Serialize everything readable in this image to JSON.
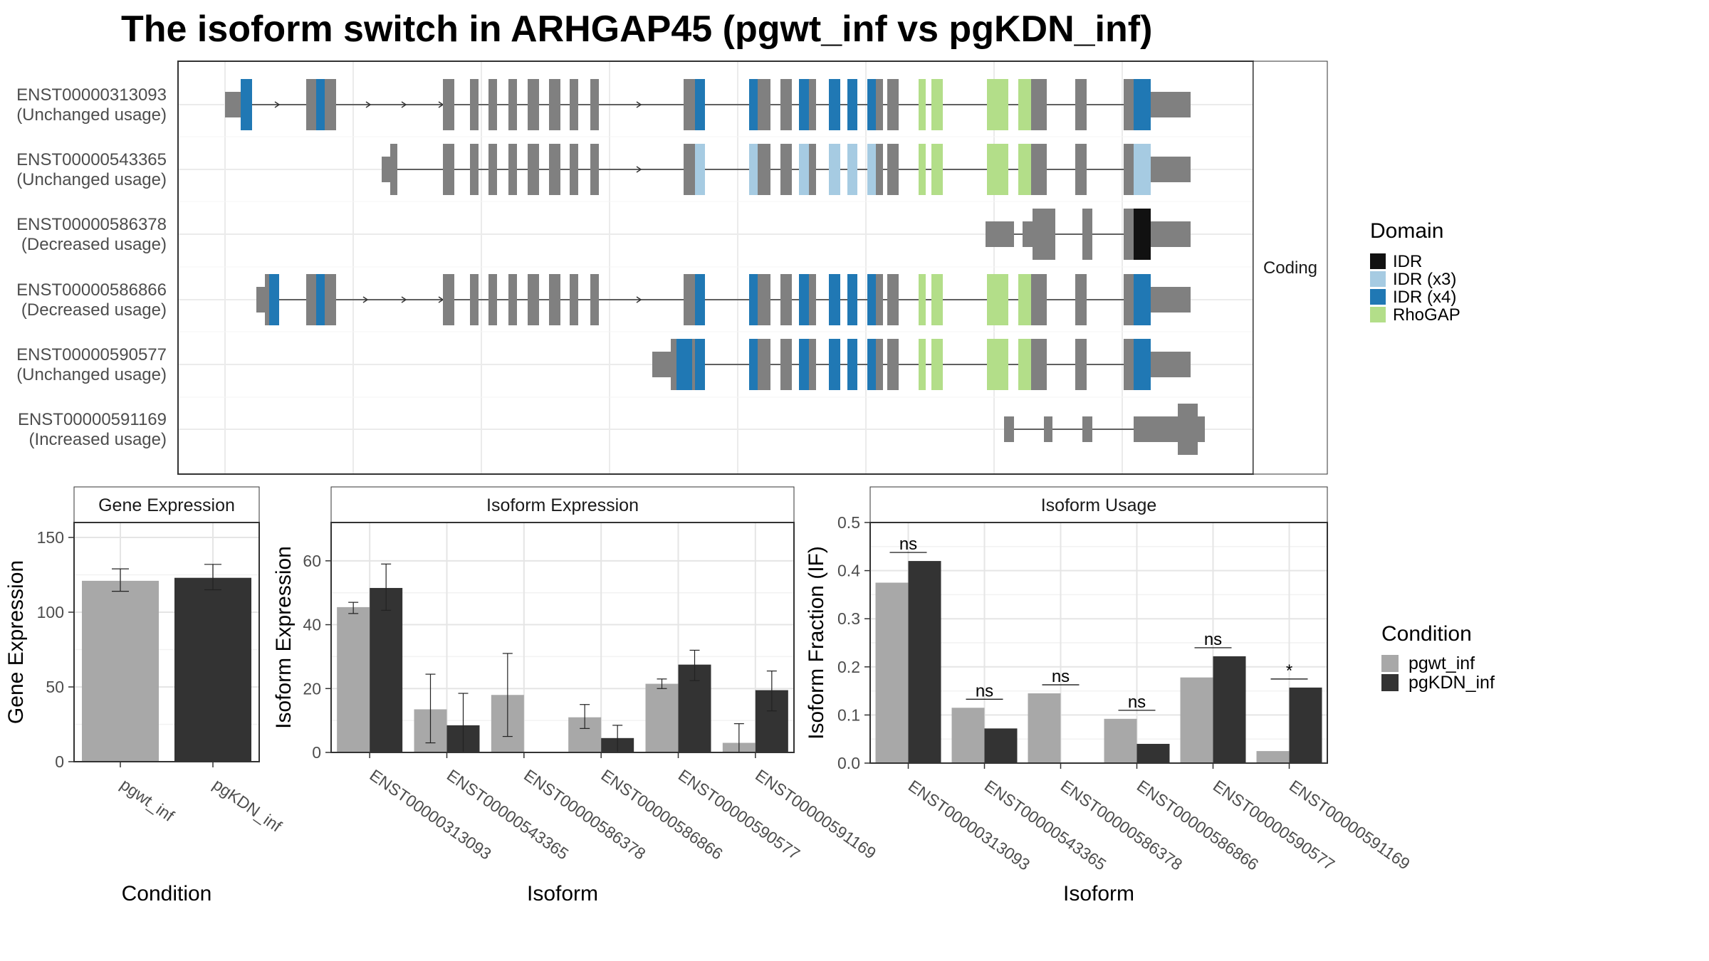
{
  "title": "The isoform switch in ARHGAP45 (pgwt_inf vs pgKDN_inf)",
  "colors": {
    "pgwt_inf": "#a8a8a8",
    "pgKDN_inf": "#333333",
    "exon": "#808080",
    "IDR": "#111111",
    "IDR (x3)": "#a6cbe2",
    "IDR (x4)": "#2078b4",
    "RhoGAP": "#b3de89"
  },
  "structure": {
    "strip_label": "Coding",
    "legend_title": "Domain",
    "legend_items": [
      "IDR",
      "IDR (x3)",
      "IDR (x4)",
      "RhoGAP"
    ],
    "transcripts": [
      {
        "id": "ENST00000313093",
        "status": "(Unchanged usage)"
      },
      {
        "id": "ENST00000543365",
        "status": "(Unchanged usage)"
      },
      {
        "id": "ENST00000586378",
        "status": "(Decreased usage)"
      },
      {
        "id": "ENST00000586866",
        "status": "(Decreased usage)"
      },
      {
        "id": "ENST00000590577",
        "status": "(Unchanged usage)"
      },
      {
        "id": "ENST00000591169",
        "status": "(Increased usage)"
      }
    ]
  },
  "condition_legend": {
    "title": "Condition",
    "items": [
      "pgwt_inf",
      "pgKDN_inf"
    ]
  },
  "chart_data": [
    {
      "type": "bar",
      "title": "Gene Expression",
      "xlabel": "Condition",
      "ylabel": "Gene Expression",
      "ylim": [
        0,
        160
      ],
      "yticks": [
        0,
        50,
        100,
        150
      ],
      "categories": [
        "pgwt_inf",
        "pgKDN_inf"
      ],
      "values": [
        121,
        123
      ],
      "errors": [
        [
          114,
          129
        ],
        [
          115,
          132
        ]
      ],
      "grid": true
    },
    {
      "type": "bar",
      "title": "Isoform Expression",
      "xlabel": "Isoform",
      "ylabel": "Isoform Expression",
      "ylim": [
        0,
        72
      ],
      "yticks": [
        0,
        20,
        40,
        60
      ],
      "categories": [
        "ENST00000313093",
        "ENST00000543365",
        "ENST00000586378",
        "ENST00000586866",
        "ENST00000590577",
        "ENST00000591169"
      ],
      "series": [
        {
          "name": "pgwt_inf",
          "values": [
            45.5,
            13.5,
            18,
            11,
            21.5,
            3
          ],
          "errors": [
            [
              43.5,
              47
            ],
            [
              3,
              24.5
            ],
            [
              5,
              31
            ],
            [
              7.5,
              15
            ],
            [
              20,
              23
            ],
            [
              0,
              9
            ]
          ]
        },
        {
          "name": "pgKDN_inf",
          "values": [
            51.5,
            8.5,
            0,
            4.5,
            27.5,
            19.5
          ],
          "errors": [
            [
              44.5,
              59
            ],
            [
              0,
              18.5
            ],
            [
              0,
              0
            ],
            [
              0,
              8.5
            ],
            [
              22.5,
              32
            ],
            [
              13,
              25.5
            ]
          ]
        }
      ],
      "grid": true
    },
    {
      "type": "bar",
      "title": "Isoform Usage",
      "xlabel": "Isoform",
      "ylabel": "Isoform Fraction (IF)",
      "ylim": [
        0,
        0.5
      ],
      "yticks": [
        "0.0",
        "0.1",
        "0.2",
        "0.3",
        "0.4",
        "0.5"
      ],
      "categories": [
        "ENST00000313093",
        "ENST00000543365",
        "ENST00000586378",
        "ENST00000586866",
        "ENST00000590577",
        "ENST00000591169"
      ],
      "series": [
        {
          "name": "pgwt_inf",
          "values": [
            0.375,
            0.115,
            0.145,
            0.092,
            0.178,
            0.025
          ]
        },
        {
          "name": "pgKDN_inf",
          "values": [
            0.42,
            0.072,
            0,
            0.04,
            0.222,
            0.157
          ]
        }
      ],
      "significance": [
        "ns",
        "ns",
        "ns",
        "ns",
        "ns",
        "*"
      ],
      "grid": true
    }
  ]
}
